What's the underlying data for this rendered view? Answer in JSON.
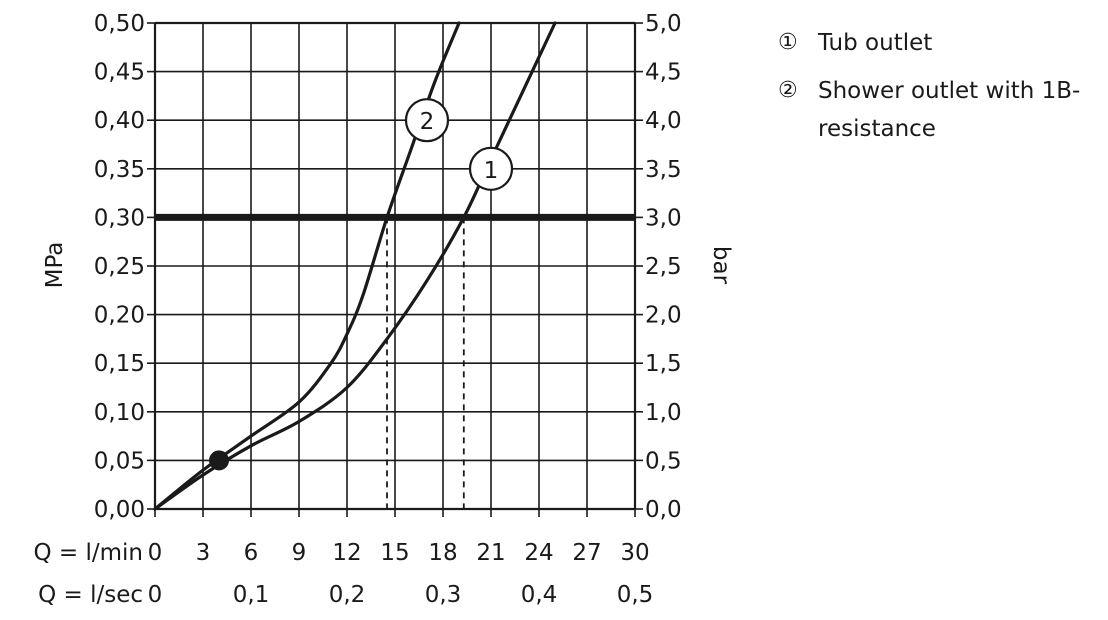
{
  "chart_data": {
    "type": "line",
    "y_left_label": "MPa",
    "y_right_label": "bar",
    "x_row_labels": [
      "Q = l/min",
      "Q = l/sec"
    ],
    "x_ticks_lmin": [
      "0",
      "3",
      "6",
      "9",
      "12",
      "15",
      "18",
      "21",
      "24",
      "27",
      "30"
    ],
    "x_ticks_lsec": [
      "0",
      "0,1",
      "0,2",
      "0,3",
      "0,4",
      "0,5"
    ],
    "y_ticks_mpa": [
      "0,00",
      "0,05",
      "0,10",
      "0,15",
      "0,20",
      "0,25",
      "0,30",
      "0,35",
      "0,40",
      "0,45",
      "0,50"
    ],
    "y_ticks_bar": [
      "0,0",
      "0,5",
      "1,0",
      "1,5",
      "2,0",
      "2,5",
      "3,0",
      "3,5",
      "4,0",
      "4,5",
      "5,0"
    ],
    "xlim": [
      0,
      30
    ],
    "ylim": [
      0,
      0.5
    ],
    "grid": true,
    "reference_line": {
      "y": 0.3
    },
    "marker_point": {
      "x": 4,
      "y": 0.05
    },
    "series": [
      {
        "label": "1",
        "x": [
          0,
          3,
          6,
          9,
          12,
          14.5,
          17,
          19.3,
          21,
          23,
          25
        ],
        "y": [
          0,
          0.035,
          0.065,
          0.09,
          0.125,
          0.175,
          0.235,
          0.3,
          0.36,
          0.43,
          0.5
        ],
        "drop_x": 19.3,
        "label_at": {
          "x": 21,
          "y": 0.35
        }
      },
      {
        "label": "2",
        "x": [
          0,
          3,
          6,
          9,
          11,
          12,
          13,
          14.5,
          16,
          17.5,
          19
        ],
        "y": [
          0,
          0.04,
          0.075,
          0.11,
          0.15,
          0.18,
          0.22,
          0.3,
          0.37,
          0.44,
          0.5
        ],
        "drop_x": 14.5,
        "label_at": {
          "x": 17,
          "y": 0.4
        }
      }
    ]
  },
  "legend": [
    {
      "num": "①",
      "text": "Tub outlet"
    },
    {
      "num": "②",
      "text": "Shower outlet with 1B-resistance"
    }
  ]
}
